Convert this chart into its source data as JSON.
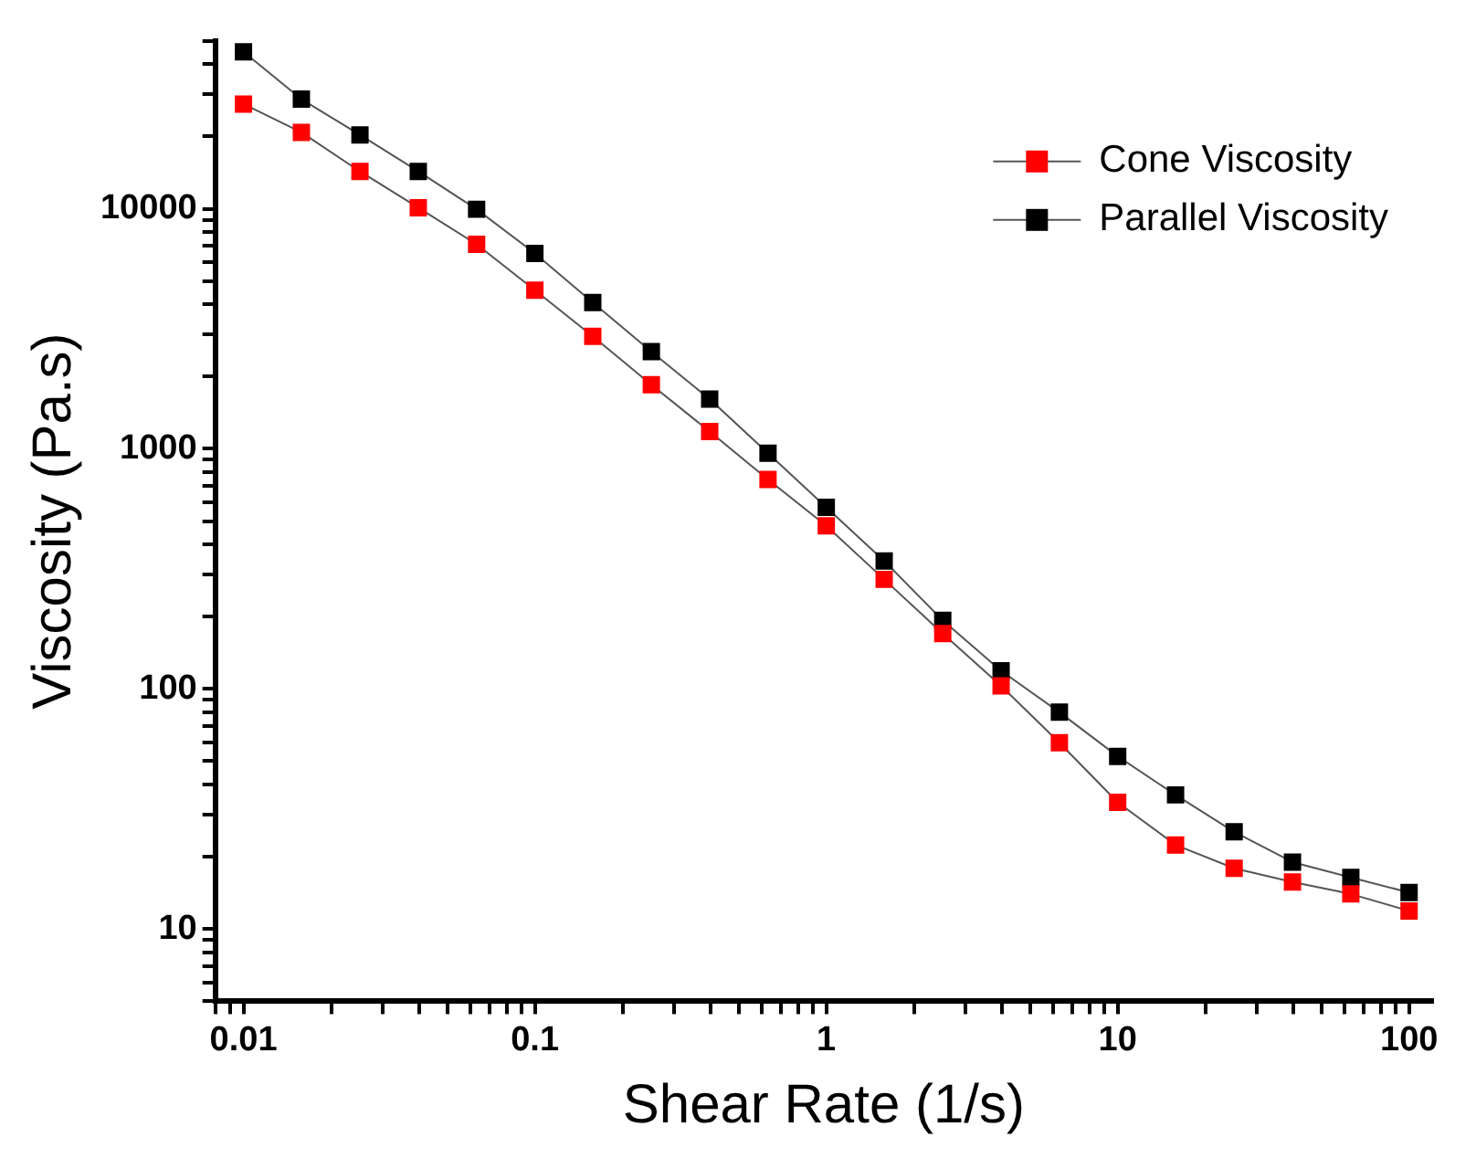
{
  "chart_data": {
    "type": "line",
    "xlabel": "Shear Rate (1/s)",
    "ylabel": "Viscosity (Pa.s)",
    "log": "xy",
    "grid": false,
    "legend": "top right",
    "marker": "square",
    "line_style": "solid",
    "x": [
      0.01,
      0.0158,
      0.0251,
      0.0398,
      0.0631,
      0.1,
      0.158,
      0.251,
      0.398,
      0.631,
      1,
      1.58,
      2.51,
      3.98,
      6.31,
      10,
      15.8,
      25.1,
      39.8,
      63.1,
      100
    ],
    "xlim": [
      0.008,
      120
    ],
    "xticks": [
      {
        "value": 0.008,
        "label": null
      },
      {
        "value": 0.009,
        "label": null
      },
      0.01,
      {
        "value": 0.02,
        "label": null
      },
      {
        "value": 0.03,
        "label": null
      },
      {
        "value": 0.04,
        "label": null
      },
      {
        "value": 0.05,
        "label": null
      },
      {
        "value": 0.06,
        "label": null
      },
      {
        "value": 0.07,
        "label": null
      },
      {
        "value": 0.08,
        "label": null
      },
      {
        "value": 0.09,
        "label": null
      },
      0.1,
      {
        "value": 0.2,
        "label": null
      },
      {
        "value": 0.3,
        "label": null
      },
      {
        "value": 0.4,
        "label": null
      },
      {
        "value": 0.5,
        "label": null
      },
      {
        "value": 0.6,
        "label": null
      },
      {
        "value": 0.7,
        "label": null
      },
      {
        "value": 0.8,
        "label": null
      },
      {
        "value": 0.9,
        "label": null
      },
      1,
      {
        "value": 2,
        "label": null
      },
      {
        "value": 3,
        "label": null
      },
      {
        "value": 4,
        "label": null
      },
      {
        "value": 5,
        "label": null
      },
      {
        "value": 6,
        "label": null
      },
      {
        "value": 7,
        "label": null
      },
      {
        "value": 8,
        "label": null
      },
      {
        "value": 9,
        "label": null
      },
      10,
      {
        "value": 20,
        "label": null
      },
      {
        "value": 30,
        "label": null
      },
      {
        "value": 40,
        "label": null
      },
      {
        "value": 50,
        "label": null
      },
      {
        "value": 60,
        "label": null
      },
      {
        "value": 70,
        "label": null
      },
      {
        "value": 80,
        "label": null
      },
      {
        "value": 90,
        "label": null
      },
      100
    ],
    "ylim": [
      5,
      50000
    ],
    "yticks": [
      {
        "value": 5,
        "label": null
      },
      {
        "value": 6,
        "label": null
      },
      {
        "value": 7,
        "label": null
      },
      {
        "value": 8,
        "label": null
      },
      {
        "value": 9,
        "label": null
      },
      10,
      {
        "value": 20,
        "label": null
      },
      {
        "value": 30,
        "label": null
      },
      {
        "value": 40,
        "label": null
      },
      {
        "value": 50,
        "label": null
      },
      {
        "value": 60,
        "label": null
      },
      {
        "value": 70,
        "label": null
      },
      {
        "value": 80,
        "label": null
      },
      {
        "value": 90,
        "label": null
      },
      100,
      {
        "value": 200,
        "label": null
      },
      {
        "value": 300,
        "label": null
      },
      {
        "value": 400,
        "label": null
      },
      {
        "value": 500,
        "label": null
      },
      {
        "value": 600,
        "label": null
      },
      {
        "value": 700,
        "label": null
      },
      {
        "value": 800,
        "label": null
      },
      {
        "value": 900,
        "label": null
      },
      1000,
      {
        "value": 2000,
        "label": null
      },
      {
        "value": 3000,
        "label": null
      },
      {
        "value": 4000,
        "label": null
      },
      {
        "value": 5000,
        "label": null
      },
      {
        "value": 6000,
        "label": null
      },
      {
        "value": 7000,
        "label": null
      },
      {
        "value": 8000,
        "label": null
      },
      {
        "value": 9000,
        "label": null
      },
      10000,
      {
        "value": 20000,
        "label": null
      },
      {
        "value": 30000,
        "label": null
      },
      {
        "value": 40000,
        "label": null
      },
      {
        "value": 50000,
        "label": null
      }
    ],
    "series": [
      {
        "name": "Cone Viscosity",
        "color": "#ff0000",
        "values": [
          27300,
          20800,
          14300,
          10100,
          7110,
          4580,
          2940,
          1850,
          1180,
          745,
          478,
          286,
          170,
          103,
          59.7,
          33.7,
          22.4,
          17.9,
          15.7,
          14,
          11.9
        ]
      },
      {
        "name": "Parallel Viscosity",
        "color": "#000000",
        "values": [
          45000,
          28600,
          20300,
          14300,
          9950,
          6520,
          4070,
          2540,
          1610,
          959,
          571,
          341,
          193,
          119,
          80,
          52.4,
          36.2,
          25.4,
          19,
          16.4,
          14.2
        ]
      }
    ]
  }
}
